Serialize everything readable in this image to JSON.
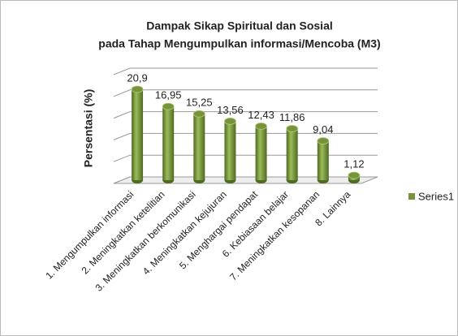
{
  "chart_data": {
    "type": "bar3d",
    "title": [
      "Dampak Sikap Spiritual dan Sosial",
      "pada Tahap Mengumpulkan informasi/Mencoba (M3)"
    ],
    "y_label": "Persentasi (%)",
    "categories": [
      "1. Mengumpulkan informasi",
      "2. Meningkatkan ketelitian",
      "3. Meningkatkan berkomunikasi",
      "4. Meningkatkan kejujuran",
      "5. Menghargai pendapat",
      "6. Kebiasaan belajar",
      "7. Meningkatkan kesopanan",
      "8. Lainnya"
    ],
    "series": [
      {
        "name": "Series1",
        "color": "#77933c",
        "values": [
          20.9,
          16.95,
          15.25,
          13.56,
          12.43,
          11.86,
          9.04,
          1.12
        ],
        "value_labels": [
          "20,9",
          "16,95",
          "15,25",
          "13,56",
          "12,43",
          "11,86",
          "9,04",
          "1,12"
        ]
      }
    ],
    "ylim": [
      0,
      25
    ],
    "yticks": [
      0,
      5,
      10,
      15,
      20,
      25
    ],
    "grid": true,
    "legend": "right"
  }
}
